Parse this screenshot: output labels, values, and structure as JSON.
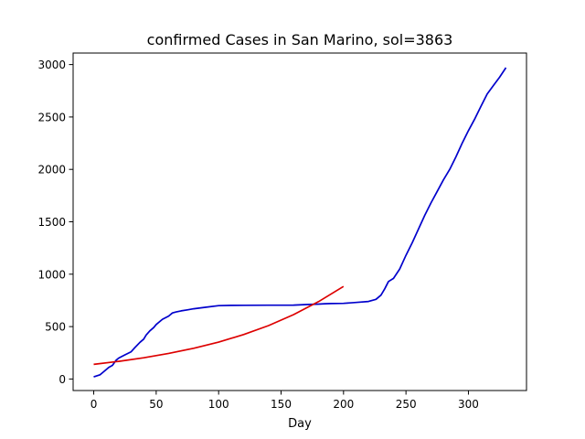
{
  "chart_data": {
    "type": "line",
    "title": "confirmed Cases in San Marino, sol=3863",
    "xlabel": "Day",
    "ylabel": "",
    "xlim": [
      -16.5,
      346.5
    ],
    "ylim": [
      -110,
      3110
    ],
    "xticks": [
      0,
      50,
      100,
      150,
      200,
      250,
      300
    ],
    "yticks": [
      0,
      500,
      1000,
      1500,
      2000,
      2500,
      3000
    ],
    "grid": false,
    "series": [
      {
        "color": "#0000cc",
        "x": [
          0,
          5,
          8,
          12,
          15,
          18,
          20,
          25,
          30,
          33,
          37,
          40,
          42,
          45,
          48,
          50,
          55,
          60,
          63,
          66,
          70,
          75,
          80,
          90,
          100,
          110,
          120,
          140,
          160,
          170,
          180,
          185,
          190,
          200,
          210,
          220,
          226,
          230,
          233,
          236,
          240,
          245,
          250,
          255,
          260,
          265,
          270,
          275,
          280,
          285,
          290,
          295,
          300,
          305,
          310,
          315,
          320,
          325,
          330
        ],
        "y": [
          20,
          40,
          70,
          110,
          130,
          180,
          200,
          230,
          260,
          300,
          350,
          380,
          420,
          460,
          490,
          520,
          570,
          600,
          630,
          640,
          650,
          660,
          670,
          685,
          700,
          702,
          703,
          704,
          705,
          710,
          715,
          718,
          720,
          722,
          730,
          740,
          760,
          800,
          860,
          930,
          960,
          1050,
          1180,
          1300,
          1430,
          1560,
          1680,
          1790,
          1900,
          2000,
          2120,
          2250,
          2370,
          2480,
          2600,
          2720,
          2800,
          2880,
          2970
        ]
      },
      {
        "color": "#dd0000",
        "x": [
          0,
          20,
          40,
          60,
          80,
          100,
          120,
          140,
          160,
          180,
          200
        ],
        "y": [
          140,
          168,
          202,
          244,
          293,
          352,
          424,
          510,
          614,
          738,
          883
        ]
      }
    ]
  }
}
